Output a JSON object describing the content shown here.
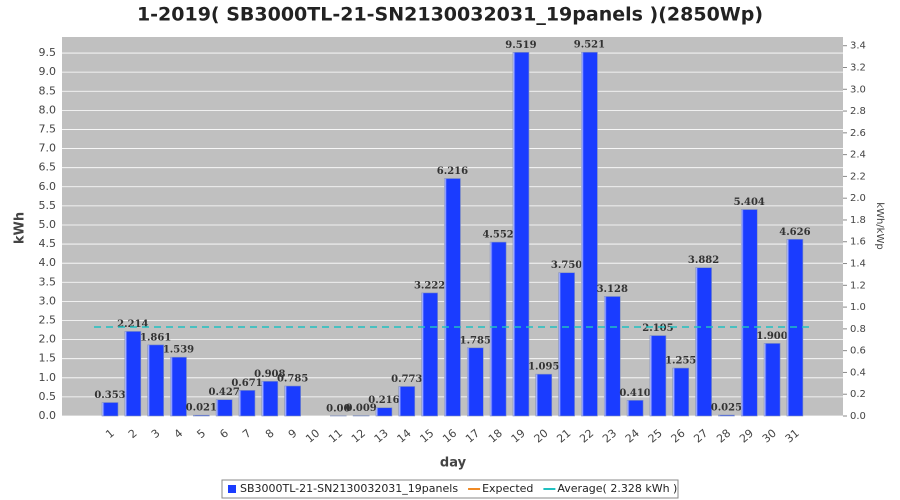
{
  "chart_data": {
    "type": "bar",
    "title": "1-2019( SB3000TL-21-SN2130032031_19panels )(2850Wp)",
    "x_label": "day",
    "y_label": "kWh",
    "y2_label": "kWh/kWp",
    "categories": [
      "1",
      "2",
      "3",
      "4",
      "5",
      "6",
      "7",
      "8",
      "9",
      "10",
      "11",
      "12",
      "13",
      "14",
      "15",
      "16",
      "17",
      "18",
      "19",
      "20",
      "21",
      "22",
      "23",
      "24",
      "25",
      "26",
      "27",
      "28",
      "29",
      "30",
      "31"
    ],
    "series": [
      {
        "name": "SB3000TL-21-SN2130032031_19panels",
        "color": "#1a3cff",
        "values": [
          0.353,
          2.214,
          1.861,
          1.539,
          0.021,
          0.427,
          0.671,
          0.908,
          0.785,
          0,
          0.004,
          0.009,
          0.216,
          0.773,
          3.222,
          6.216,
          1.785,
          4.552,
          9.519,
          1.095,
          3.75,
          9.521,
          3.128,
          0.41,
          2.105,
          1.255,
          3.882,
          0.025,
          5.404,
          1.9,
          4.626
        ],
        "value_labels": [
          "0.353",
          "2.214",
          "1.861",
          "1.539",
          "0.021",
          "0.427",
          "0.671",
          "0.908",
          "0.785",
          null,
          "0.00",
          "0.009",
          "0.216",
          "0.773",
          "3.222",
          "6.216",
          "1.785",
          "4.552",
          "9.519",
          "1.095",
          "3.750",
          "9.521",
          "3.128",
          "0.410",
          "2.105",
          "1.255",
          "3.882",
          "0.025",
          "5.404",
          "1.900",
          "4.626"
        ]
      }
    ],
    "legend": [
      {
        "name": "SB3000TL-21-SN2130032031_19panels",
        "color": "#1a3cff"
      },
      {
        "name": "Expected",
        "color": "#f08a24"
      },
      {
        "name": "Average( 2.328 kWh )",
        "color": "#20c0c0"
      }
    ],
    "average": 2.328,
    "average_color": "#20c0c0",
    "ylim": [
      0,
      9.92
    ],
    "yticks": [
      {
        "value": 0,
        "label": "0.0"
      },
      {
        "value": 0.5,
        "label": "0.5"
      },
      {
        "value": 1,
        "label": "1.0"
      },
      {
        "value": 1.5,
        "label": "1.5"
      },
      {
        "value": 2,
        "label": "2.0"
      },
      {
        "value": 2.5,
        "label": "2.5"
      },
      {
        "value": 3,
        "label": "3.0"
      },
      {
        "value": 3.5,
        "label": "3.5"
      },
      {
        "value": 4,
        "label": "4.0"
      },
      {
        "value": 4.5,
        "label": "4.5"
      },
      {
        "value": 5,
        "label": "5.0"
      },
      {
        "value": 5.5,
        "label": "5.5"
      },
      {
        "value": 6,
        "label": "6.0"
      },
      {
        "value": 6.5,
        "label": "6.5"
      },
      {
        "value": 7,
        "label": "7.0"
      },
      {
        "value": 7.5,
        "label": "7.5"
      },
      {
        "value": 8,
        "label": "8.0"
      },
      {
        "value": 8.5,
        "label": "8.5"
      },
      {
        "value": 9,
        "label": "9.0"
      },
      {
        "value": 9.5,
        "label": "9.5"
      }
    ],
    "y2lim": [
      0,
      3.48
    ],
    "y2ticks": [
      {
        "value": 0,
        "label": "0.0"
      },
      {
        "value": 0.2,
        "label": "0.2"
      },
      {
        "value": 0.4,
        "label": "0.4"
      },
      {
        "value": 0.6,
        "label": "0.6"
      },
      {
        "value": 0.8,
        "label": "0.8"
      },
      {
        "value": 1,
        "label": "1.0"
      },
      {
        "value": 1.2,
        "label": "1.2"
      },
      {
        "value": 1.4,
        "label": "1.4"
      },
      {
        "value": 1.6,
        "label": "1.6"
      },
      {
        "value": 1.8,
        "label": "1.8"
      },
      {
        "value": 2,
        "label": "2.0"
      },
      {
        "value": 2.2,
        "label": "2.2"
      },
      {
        "value": 2.4,
        "label": "2.4"
      },
      {
        "value": 2.6,
        "label": "2.6"
      },
      {
        "value": 2.8,
        "label": "2.8"
      },
      {
        "value": 3,
        "label": "3.0"
      },
      {
        "value": 3.2,
        "label": "3.2"
      },
      {
        "value": 3.4,
        "label": "3.4"
      }
    ],
    "grid": true
  }
}
